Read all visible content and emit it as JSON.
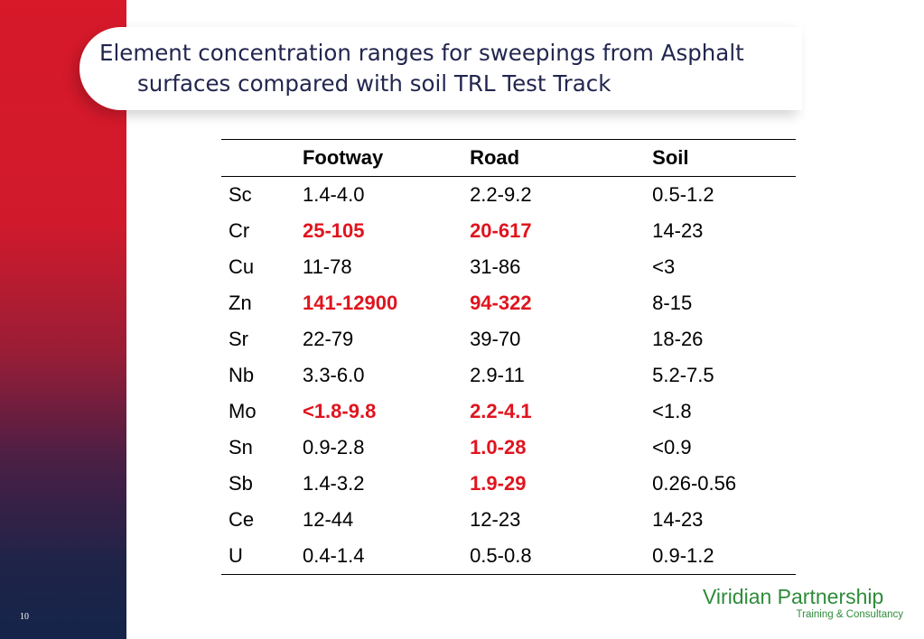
{
  "slide": {
    "title_line1": "Element concentration ranges for sweepings from Asphalt",
    "title_line2": "surfaces compared with soil TRL Test Track",
    "page_number": "10"
  },
  "table": {
    "headers": [
      "",
      "Footway",
      "Road",
      "Soil"
    ],
    "rows": [
      {
        "element": "Sc",
        "footway": "1.4-4.0",
        "road": "2.2-9.2",
        "soil": "0.5-1.2"
      },
      {
        "element": "Cr",
        "footway": "25-105",
        "road": "20-617",
        "soil": "14-23"
      },
      {
        "element": "Cu",
        "footway": "11-78",
        "road": "31-86",
        "soil": "<3"
      },
      {
        "element": "Zn",
        "footway": "141-12900",
        "road": "94-322",
        "soil": "8-15"
      },
      {
        "element": "Sr",
        "footway": "22-79",
        "road": "39-70",
        "soil": "18-26"
      },
      {
        "element": "Nb",
        "footway": "3.3-6.0",
        "road": "2.9-11",
        "soil": "5.2-7.5"
      },
      {
        "element": "Mo",
        "footway": "<1.8-9.8",
        "road": "2.2-4.1",
        "soil": "<1.8"
      },
      {
        "element": "Sn",
        "footway": "0.9-2.8",
        "road": "1.0-28",
        "soil": "<0.9"
      },
      {
        "element": "Sb",
        "footway": "1.4-3.2",
        "road": "1.9-29",
        "soil": "0.26-0.56"
      },
      {
        "element": "Ce",
        "footway": "12-44",
        "road": "12-23",
        "soil": "14-23"
      },
      {
        "element": "U",
        "footway": "0.4-1.4",
        "road": "0.5-0.8",
        "soil": "0.9-1.2"
      }
    ],
    "highlight_color": "#e0141e"
  },
  "logo": {
    "name": "Viridian Partnership",
    "tagline": "Training & Consultancy",
    "color": "#2e8b3a"
  },
  "colors": {
    "sidebar_top": "#d7192a",
    "sidebar_bottom": "#15244a",
    "title_text": "#22264f"
  }
}
